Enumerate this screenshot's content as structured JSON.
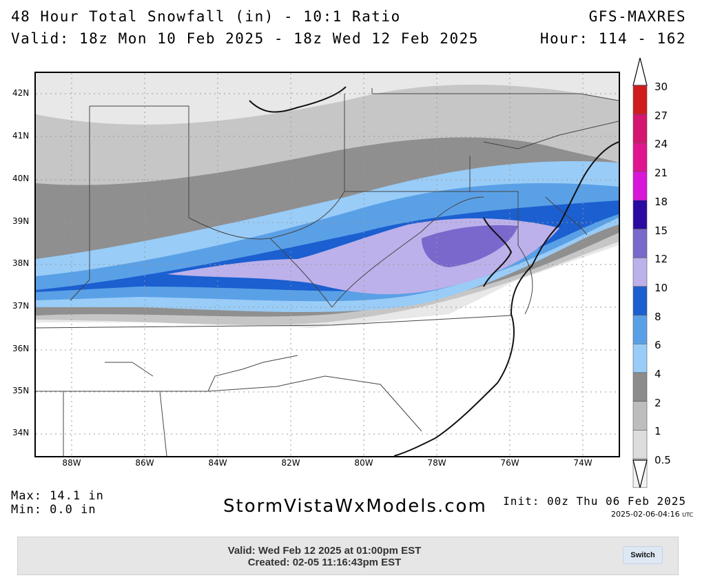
{
  "header": {
    "title": "48 Hour Total Snowfall (in) - 10:1 Ratio",
    "valid_range": "Valid: 18z Mon 10 Feb 2025 - 18z Wed 12 Feb 2025",
    "model": "GFS-MAXRES",
    "hours": "Hour: 114 - 162"
  },
  "map": {
    "lat_labels": [
      "42N",
      "41N",
      "40N",
      "39N",
      "38N",
      "37N",
      "36N",
      "35N",
      "34N"
    ],
    "lon_labels": [
      "88W",
      "86W",
      "84W",
      "82W",
      "80W",
      "78W",
      "76W",
      "74W"
    ]
  },
  "colorbar": {
    "levels": [
      "30",
      "27",
      "24",
      "21",
      "18",
      "15",
      "12",
      "10",
      "8",
      "6",
      "4",
      "2",
      "1",
      "0.5"
    ],
    "colors": [
      "#d01c1c",
      "#d41670",
      "#e01590",
      "#d817d8",
      "#2a0aa0",
      "#7a68cc",
      "#bcb1ea",
      "#1b5fd0",
      "#5aa0e6",
      "#99ccf7",
      "#8c8c8c",
      "#bdbdbd",
      "#dcdcdc",
      "#f2f2f2"
    ]
  },
  "stats": {
    "max": "Max: 14.1 in",
    "min": "Min: 0.0 in"
  },
  "brand": "StormVistaWxModels.com",
  "init": "Init: 00z Thu 06 Feb 2025",
  "timestamp": "2025-02-06-04:16",
  "timestamp_tz": "UTC",
  "footer": {
    "valid": "Valid: Wed Feb 12 2025 at 01:00pm EST",
    "created": "Created: 02-05 11:16:43pm EST",
    "switch_label": "Switch"
  }
}
